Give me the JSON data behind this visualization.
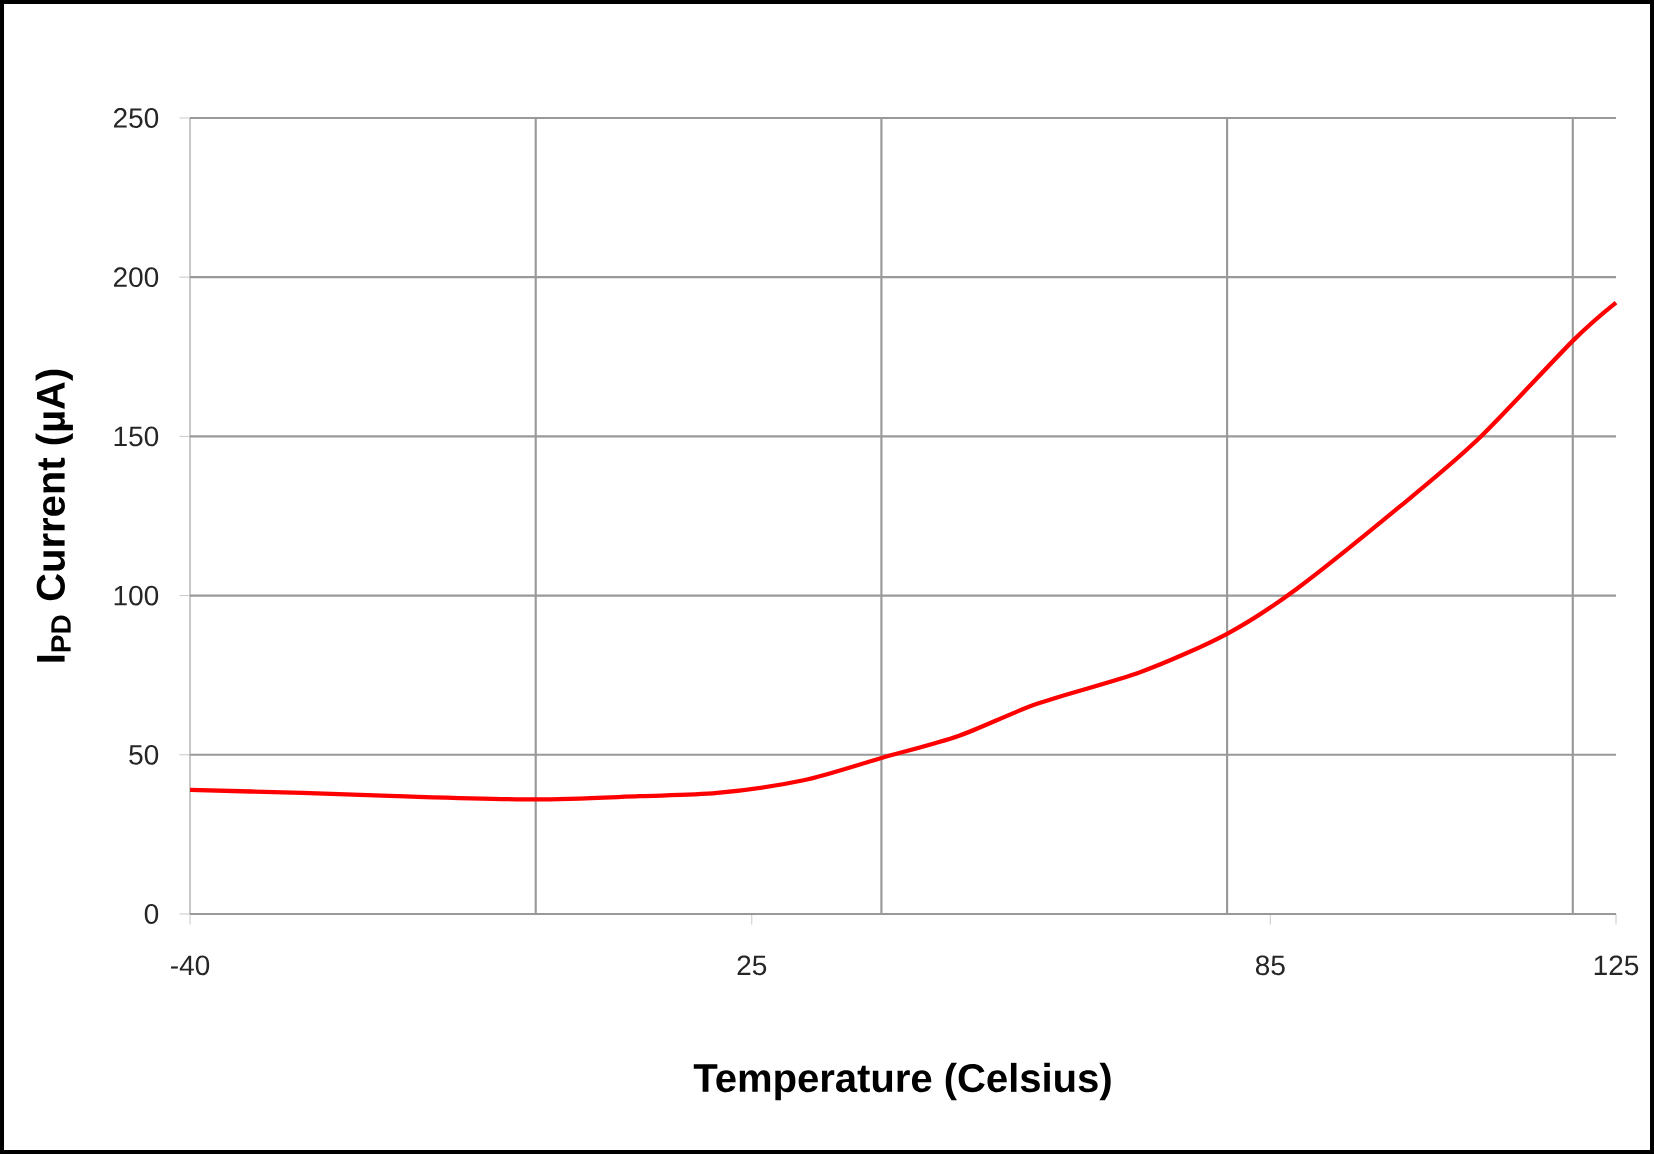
{
  "chart_data": {
    "type": "line",
    "xlabel": "Temperature (Celsius)",
    "ylabel": "I$_{PD}$ Current (µA)",
    "x": [
      -40,
      -27,
      -16,
      0,
      12,
      21,
      31,
      40,
      49,
      58,
      70,
      80,
      88,
      100,
      109,
      120,
      125
    ],
    "series": [
      {
        "color": "#ff0000",
        "values": [
          39,
          38,
          37,
          36,
          37,
          38,
          42,
          49,
          56,
          66,
          76,
          88,
          102,
          128,
          149,
          180,
          192
        ]
      }
    ],
    "xlim": [
      -40,
      125
    ],
    "xticks": [
      {
        "value": -40,
        "label": "-40"
      },
      {
        "value": 0,
        "label": null
      },
      {
        "value": 25,
        "label": "25"
      },
      {
        "value": 40,
        "label": null
      },
      {
        "value": 85,
        "label": "85"
      },
      {
        "value": 80,
        "label": null
      },
      {
        "value": 120,
        "label": null
      },
      {
        "value": 125,
        "label": "125"
      }
    ],
    "ylim": [
      0,
      250
    ],
    "yticks": [
      0,
      50,
      100,
      150,
      200,
      250
    ],
    "grid": true,
    "marker": "none",
    "line_style": "solid"
  }
}
